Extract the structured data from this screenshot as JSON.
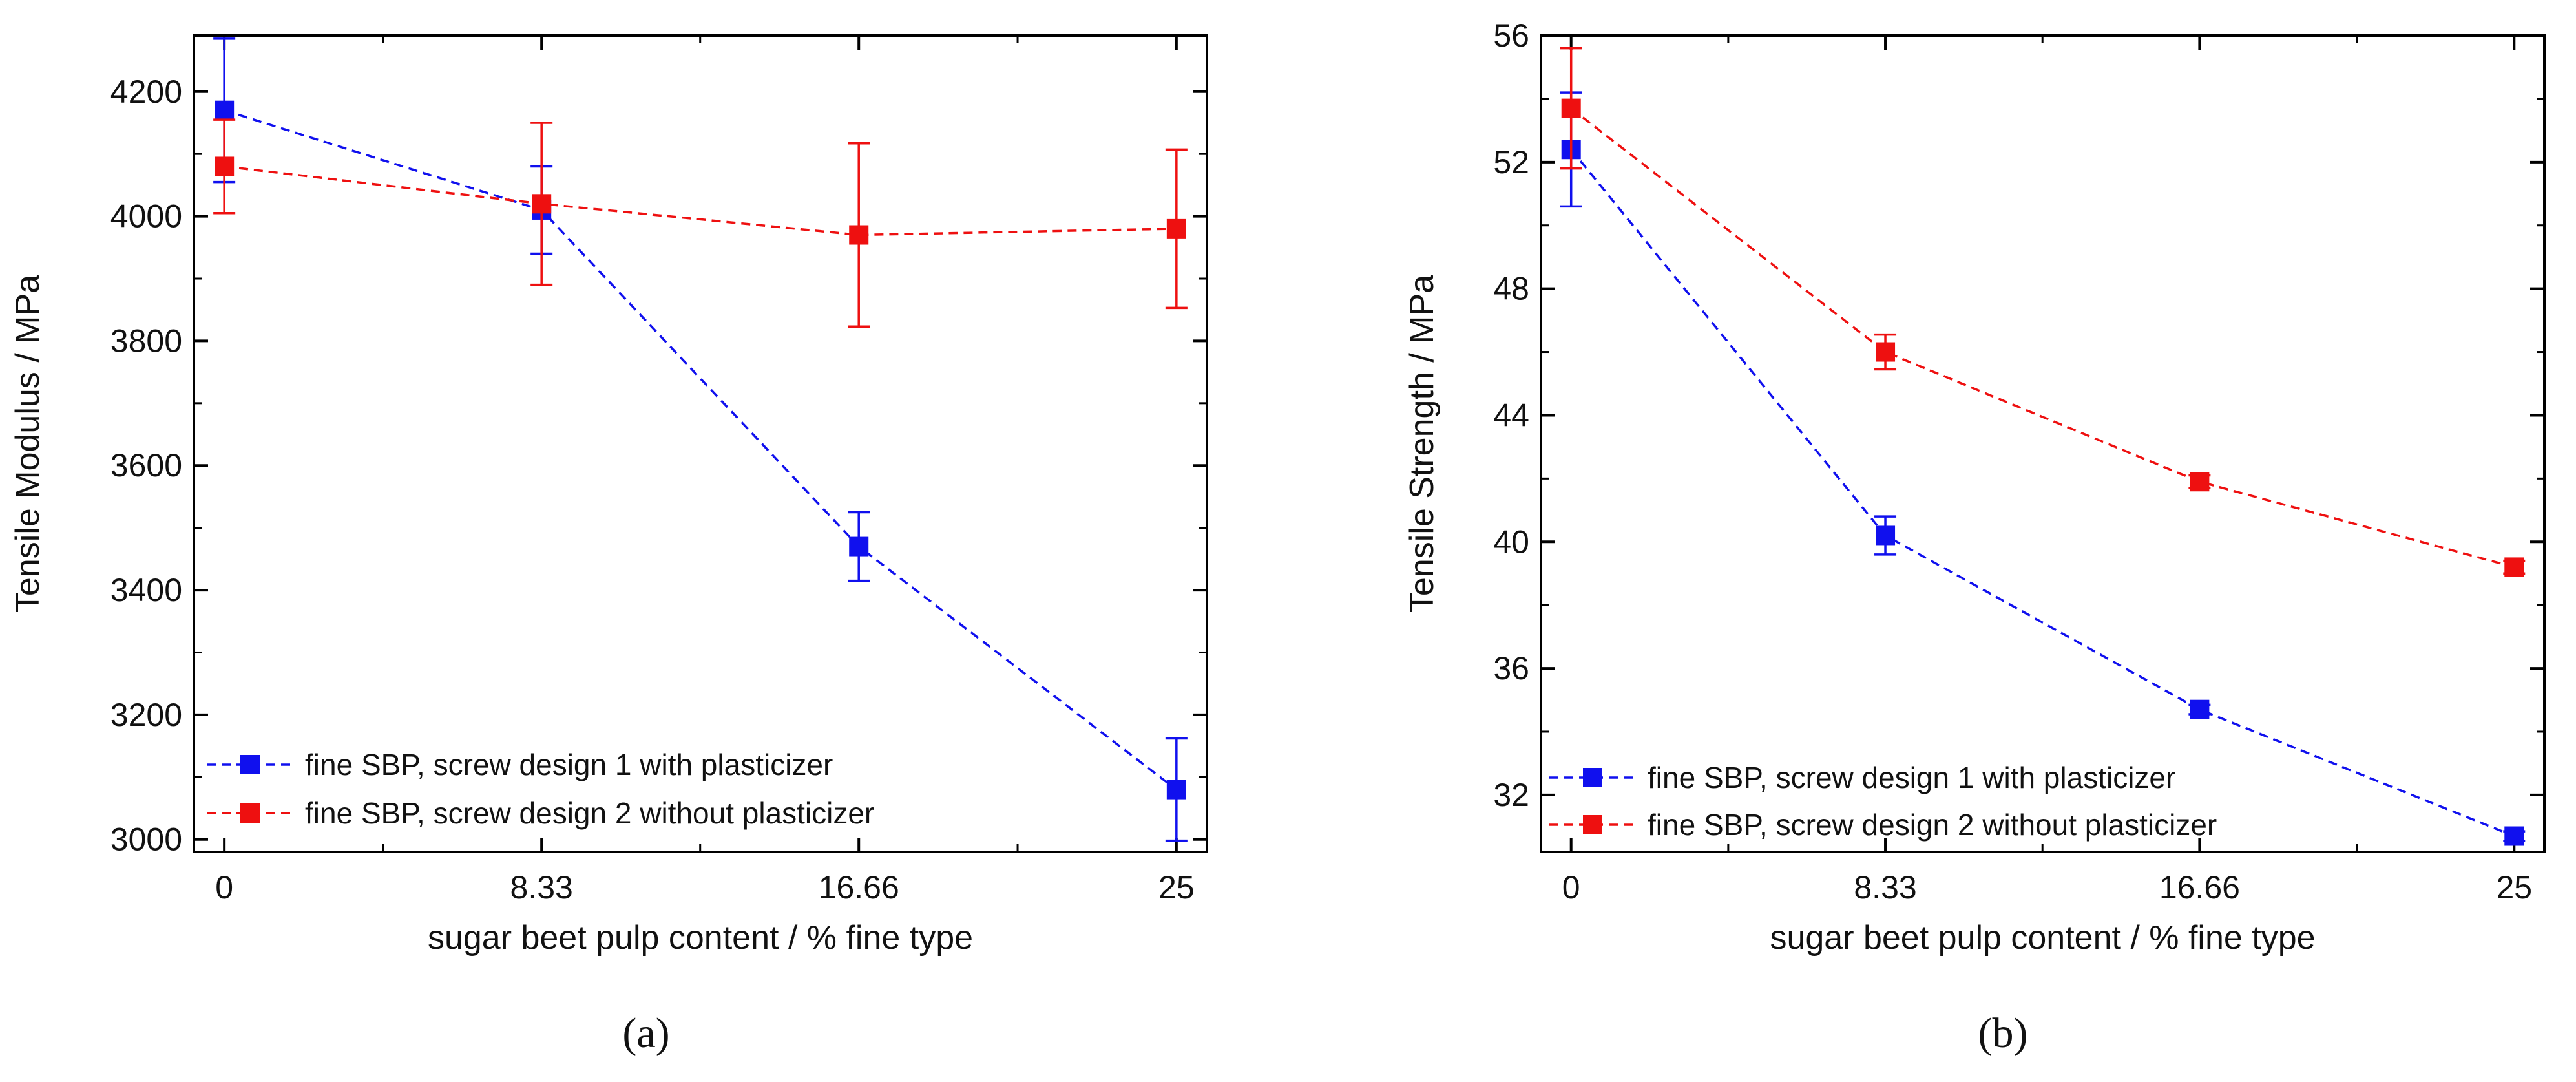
{
  "chart_data": [
    {
      "type": "line",
      "panel": "a",
      "caption": "(a)",
      "xlabel": "sugar beet pulp content / % fine type",
      "ylabel": "Tensile Modulus / MPa",
      "categories": [
        "0",
        "8.33",
        "16.66",
        "25"
      ],
      "x": [
        0,
        8.33,
        16.66,
        25
      ],
      "xlim": [
        -0.8,
        25.8
      ],
      "ylim": [
        2980,
        4290
      ],
      "yticks": [
        3000,
        3200,
        3400,
        3600,
        3800,
        4000,
        4200
      ],
      "ytick_labels": [
        "3000",
        "3200",
        "3400",
        "3600",
        "3800",
        "4000",
        "4200"
      ],
      "legend_position": "bottom-left",
      "series": [
        {
          "name": "fine SBP, screw design 1 with plasticizer",
          "color": "#1010ee",
          "values": [
            4170,
            4010,
            3470,
            3080
          ],
          "errors": [
            115,
            70,
            55,
            82
          ]
        },
        {
          "name": "fine SBP, screw design 2 without plasticizer",
          "color": "#ee1010",
          "values": [
            4080,
            4020,
            3970,
            3980
          ],
          "errors": [
            75,
            130,
            147,
            127
          ]
        }
      ]
    },
    {
      "type": "line",
      "panel": "b",
      "caption": "(b)",
      "xlabel": "sugar beet pulp content / % fine type",
      "ylabel": "Tensile Strength / MPa",
      "categories": [
        "0",
        "8.33",
        "16.66",
        "25"
      ],
      "x": [
        0,
        8.33,
        16.66,
        25
      ],
      "xlim": [
        -0.8,
        25.8
      ],
      "ylim": [
        30.2,
        56
      ],
      "yticks": [
        32,
        36,
        40,
        44,
        48,
        52,
        56
      ],
      "ytick_labels": [
        "32",
        "36",
        "40",
        "44",
        "48",
        "52",
        "56"
      ],
      "legend_position": "bottom-left",
      "series": [
        {
          "name": "fine SBP, screw design 1 with plasticizer",
          "color": "#1010ee",
          "values": [
            52.4,
            40.2,
            34.7,
            30.7
          ],
          "errors": [
            1.8,
            0.6,
            0.15,
            0.15
          ]
        },
        {
          "name": "fine SBP, screw design 2 without plasticizer",
          "color": "#ee1010",
          "values": [
            53.7,
            46.0,
            41.9,
            39.2
          ],
          "errors": [
            1.9,
            0.55,
            0.2,
            0.2
          ]
        }
      ]
    }
  ]
}
